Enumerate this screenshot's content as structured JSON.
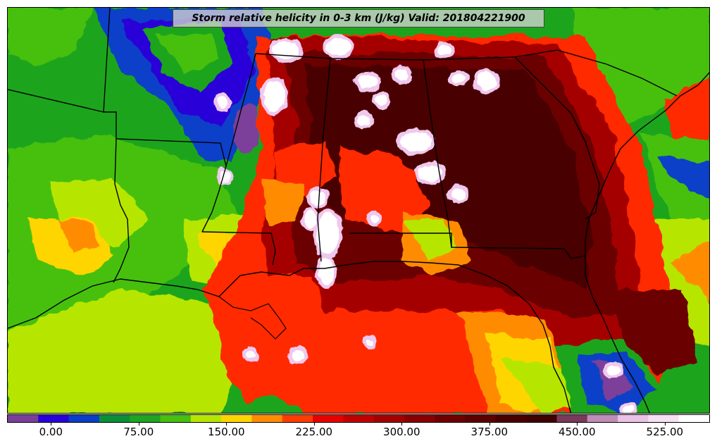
{
  "title": "Storm relative helicity in 0-3 km (J/kg) Valid: 201804221900",
  "colorbar": {
    "colors": [
      "#7b3f9a",
      "#2a00d8",
      "#0a3fc8",
      "#0b8f38",
      "#1fa51f",
      "#47c00f",
      "#b6e600",
      "#ffd500",
      "#ff8c00",
      "#ff3c00",
      "#e80000",
      "#c00000",
      "#a50000",
      "#8a0000",
      "#700000",
      "#5c0000",
      "#4a0000",
      "#3f0000",
      "#7a3a5a",
      "#c08cb8",
      "#eac2e6",
      "#f6e0f4",
      "#ffffff"
    ],
    "tick_labels": [
      "0.00",
      "75.00",
      "150.00",
      "225.00",
      "300.00",
      "375.00",
      "450.00",
      "525.00"
    ],
    "tick_values": [
      0,
      75,
      150,
      225,
      300,
      375,
      450,
      525
    ],
    "range": [
      -37.5,
      562.5
    ]
  },
  "map_colors": {
    "base": "#1fa51f",
    "yellowgreen": "#b6e600",
    "lime": "#47c00f",
    "yellow": "#ffd500",
    "orange": "#ff8c00",
    "red": "#ff2a00",
    "darkred": "#a50000",
    "maroon": "#6a0000",
    "deepmaroon": "#4a0000",
    "blue": "#0a3fc8",
    "purple": "#7b3f9a",
    "pink": "#f0c8ee",
    "white": "#ffffff",
    "border": "#000000"
  }
}
